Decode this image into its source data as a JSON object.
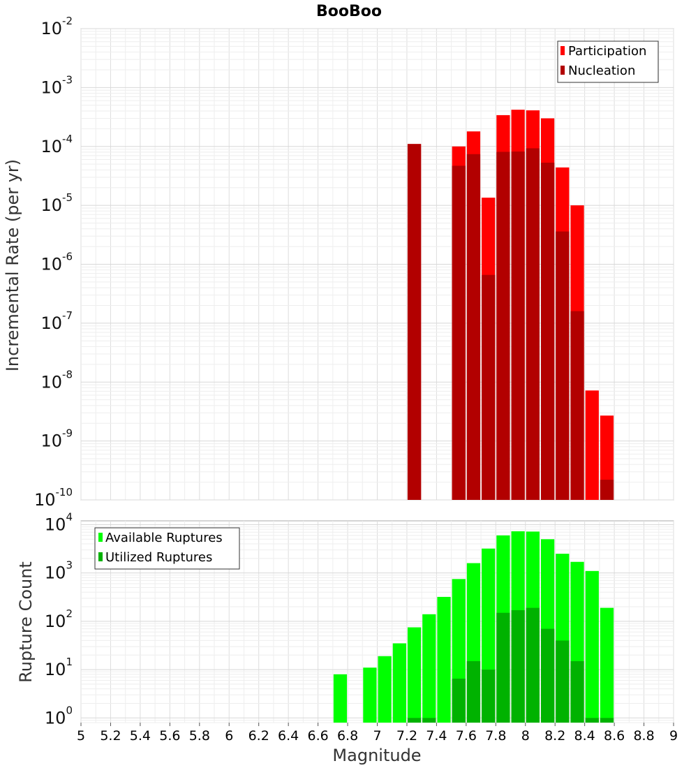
{
  "figure": {
    "title": "BooBoo",
    "xlabel": "Magnitude",
    "x_ticks": [
      "5",
      "5.2",
      "5.4",
      "5.6",
      "5.8",
      "6",
      "6.2",
      "6.4",
      "6.6",
      "6.8",
      "7",
      "7.2",
      "7.4",
      "7.6",
      "7.8",
      "8",
      "8.2",
      "8.4",
      "8.6",
      "8.8",
      "9"
    ]
  },
  "chart_data": [
    {
      "type": "bar",
      "title": "BooBoo",
      "ylabel": "Incremental Rate (per yr)",
      "xlabel": "",
      "xlim": [
        5,
        9
      ],
      "ylim": [
        1e-10,
        0.01
      ],
      "yscale": "log",
      "bin_width": 0.1,
      "y_ticks": [
        {
          "base": "10",
          "exp": "-2",
          "value": 0.01
        },
        {
          "base": "10",
          "exp": "-3",
          "value": 0.001
        },
        {
          "base": "10",
          "exp": "-4",
          "value": 0.0001
        },
        {
          "base": "10",
          "exp": "-5",
          "value": 1e-05
        },
        {
          "base": "10",
          "exp": "-6",
          "value": 1e-06
        },
        {
          "base": "10",
          "exp": "-7",
          "value": 1e-07
        },
        {
          "base": "10",
          "exp": "-8",
          "value": 1e-08
        },
        {
          "base": "10",
          "exp": "-9",
          "value": 1e-09
        },
        {
          "base": "10",
          "exp": "-10",
          "value": 1e-10
        }
      ],
      "legend": "top-right",
      "grid": true,
      "categories": [
        7.25,
        7.55,
        7.65,
        7.75,
        7.85,
        7.95,
        8.05,
        8.15,
        8.25,
        8.35,
        8.45,
        8.55
      ],
      "series": [
        {
          "name": "Participation",
          "color": "#ff0000",
          "values": [
            0.00011,
            0.0001,
            0.00018,
            1.35e-05,
            0.00034,
            0.00042,
            0.00041,
            0.0003,
            4.4e-05,
            1e-05,
            7.2e-09,
            2.7e-09
          ]
        },
        {
          "name": "Nucleation",
          "color": "#b20000",
          "values": [
            0.00011,
            4.7e-05,
            7.4e-05,
            6.6e-07,
            8.1e-05,
            8.2e-05,
            9.3e-05,
            5.3e-05,
            3.6e-06,
            1.6e-07,
            null,
            2.2e-10
          ]
        }
      ]
    },
    {
      "type": "bar",
      "title": "",
      "ylabel": "Rupture Count",
      "xlabel": "Magnitude",
      "xlim": [
        5,
        9
      ],
      "ylim": [
        0.8,
        12000
      ],
      "yscale": "log",
      "bin_width": 0.1,
      "y_ticks": [
        {
          "base": "10",
          "exp": "4",
          "value": 10000.0
        },
        {
          "base": "10",
          "exp": "3",
          "value": 1000.0
        },
        {
          "base": "10",
          "exp": "2",
          "value": 100.0
        },
        {
          "base": "10",
          "exp": "1",
          "value": 10.0
        },
        {
          "base": "10",
          "exp": "0",
          "value": 1
        }
      ],
      "legend": "top-left",
      "grid": true,
      "categories": [
        6.75,
        6.95,
        7.05,
        7.15,
        7.25,
        7.35,
        7.45,
        7.55,
        7.65,
        7.75,
        7.85,
        7.95,
        8.05,
        8.15,
        8.25,
        8.35,
        8.45,
        8.55
      ],
      "series": [
        {
          "name": "Available Ruptures",
          "color": "#00ff00",
          "values": [
            8,
            11,
            19,
            35,
            75,
            140,
            320,
            750,
            1600,
            3200,
            6000,
            7300,
            7200,
            5000,
            2500,
            1700,
            1100,
            190
          ]
        },
        {
          "name": "Utilized Ruptures",
          "color": "#00b200",
          "values": [
            null,
            null,
            null,
            null,
            1,
            1,
            null,
            6.5,
            15,
            10,
            150,
            170,
            190,
            70,
            40,
            15,
            1,
            1
          ]
        }
      ]
    }
  ]
}
